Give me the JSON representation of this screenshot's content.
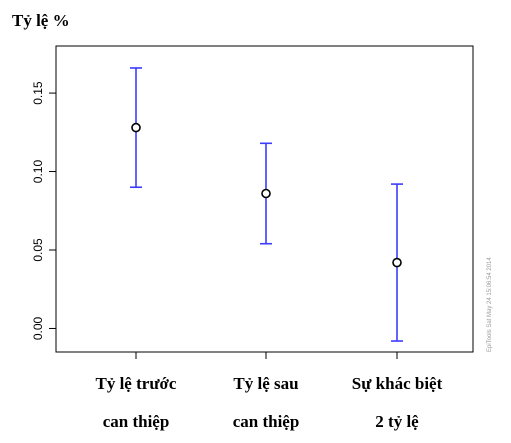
{
  "chart_data": {
    "type": "scatter",
    "title": "Tỷ lệ %",
    "categories": [
      [
        "Tỷ lệ trước",
        "can thiệp"
      ],
      [
        "Tỷ lệ sau",
        "can thiệp"
      ],
      [
        "Sự khác biệt",
        "2 tỷ lệ"
      ]
    ],
    "points": [
      {
        "estimate": 0.128,
        "lower": 0.09,
        "upper": 0.166
      },
      {
        "estimate": 0.086,
        "lower": 0.054,
        "upper": 0.118
      },
      {
        "estimate": 0.042,
        "lower": -0.008,
        "upper": 0.092
      }
    ],
    "y_ticks": [
      0.0,
      0.05,
      0.1,
      0.15
    ],
    "y_tick_labels": [
      "0.00",
      "0.05",
      "0.10",
      "0.15"
    ],
    "ylim": [
      -0.015,
      0.18
    ],
    "grid": false,
    "error_bar_color": "#3c3cff",
    "marker_color": "#000000",
    "watermark": "EpiTools Sat May 24 15:06:54 2014"
  }
}
